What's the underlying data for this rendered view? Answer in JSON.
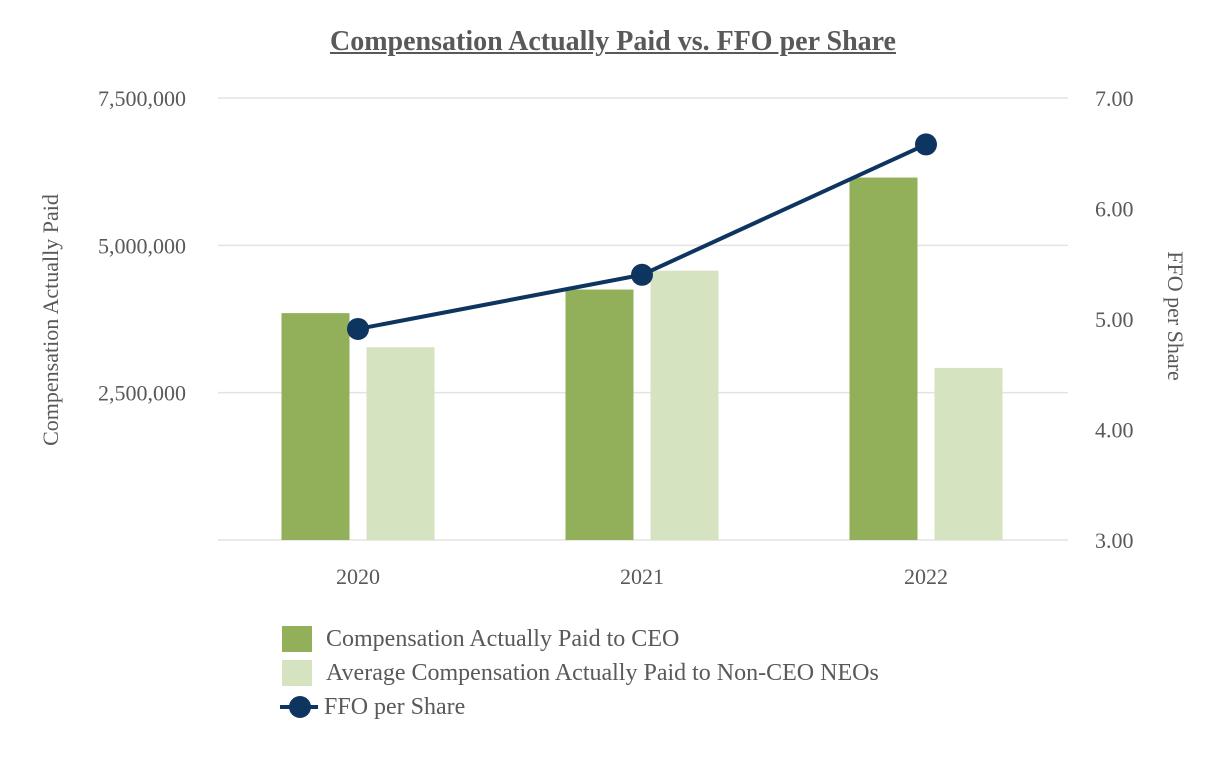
{
  "chart_data": {
    "type": "bar+line",
    "title": "Compensation Actually Paid vs. FFO per Share",
    "categories": [
      "2020",
      "2021",
      "2022"
    ],
    "series": [
      {
        "name": "Compensation Actually Paid to CEO",
        "type": "bar",
        "axis": "left",
        "color": "#92B05A",
        "values": [
          3850000,
          4250000,
          6150000
        ]
      },
      {
        "name": "Average Compensation Actually Paid to Non-CEO NEOs",
        "type": "bar",
        "axis": "left",
        "color": "#D6E3C0",
        "values": [
          3270000,
          4570000,
          2920000
        ]
      },
      {
        "name": "FFO per Share",
        "type": "line",
        "axis": "right",
        "color": "#0E3460",
        "values": [
          4.91,
          5.4,
          6.58
        ]
      }
    ],
    "y_left": {
      "label": "Compensation Actually Paid",
      "range": [
        0,
        7500000
      ],
      "ticks": [
        2500000,
        5000000,
        7500000
      ],
      "tick_labels": [
        "2,500,000",
        "5,000,000",
        "7,500,000"
      ]
    },
    "y_right": {
      "label": "FFO per Share",
      "range": [
        3.0,
        7.0
      ],
      "ticks": [
        3.0,
        4.0,
        5.0,
        6.0,
        7.0
      ],
      "tick_labels": [
        "3.00",
        "4.00",
        "5.00",
        "6.00",
        "7.00"
      ]
    },
    "grid": true,
    "legend": "bottom"
  },
  "legend": {
    "ceo_label": "Compensation Actually Paid to CEO",
    "neo_label": "Average Compensation Actually Paid to Non-CEO NEOs",
    "ffo_label": "FFO per Share"
  },
  "colors": {
    "ceo": "#92B05A",
    "neo": "#D6E3C0",
    "ffo": "#0E3460",
    "grid": "#E3E3E3",
    "text": "#595959"
  }
}
